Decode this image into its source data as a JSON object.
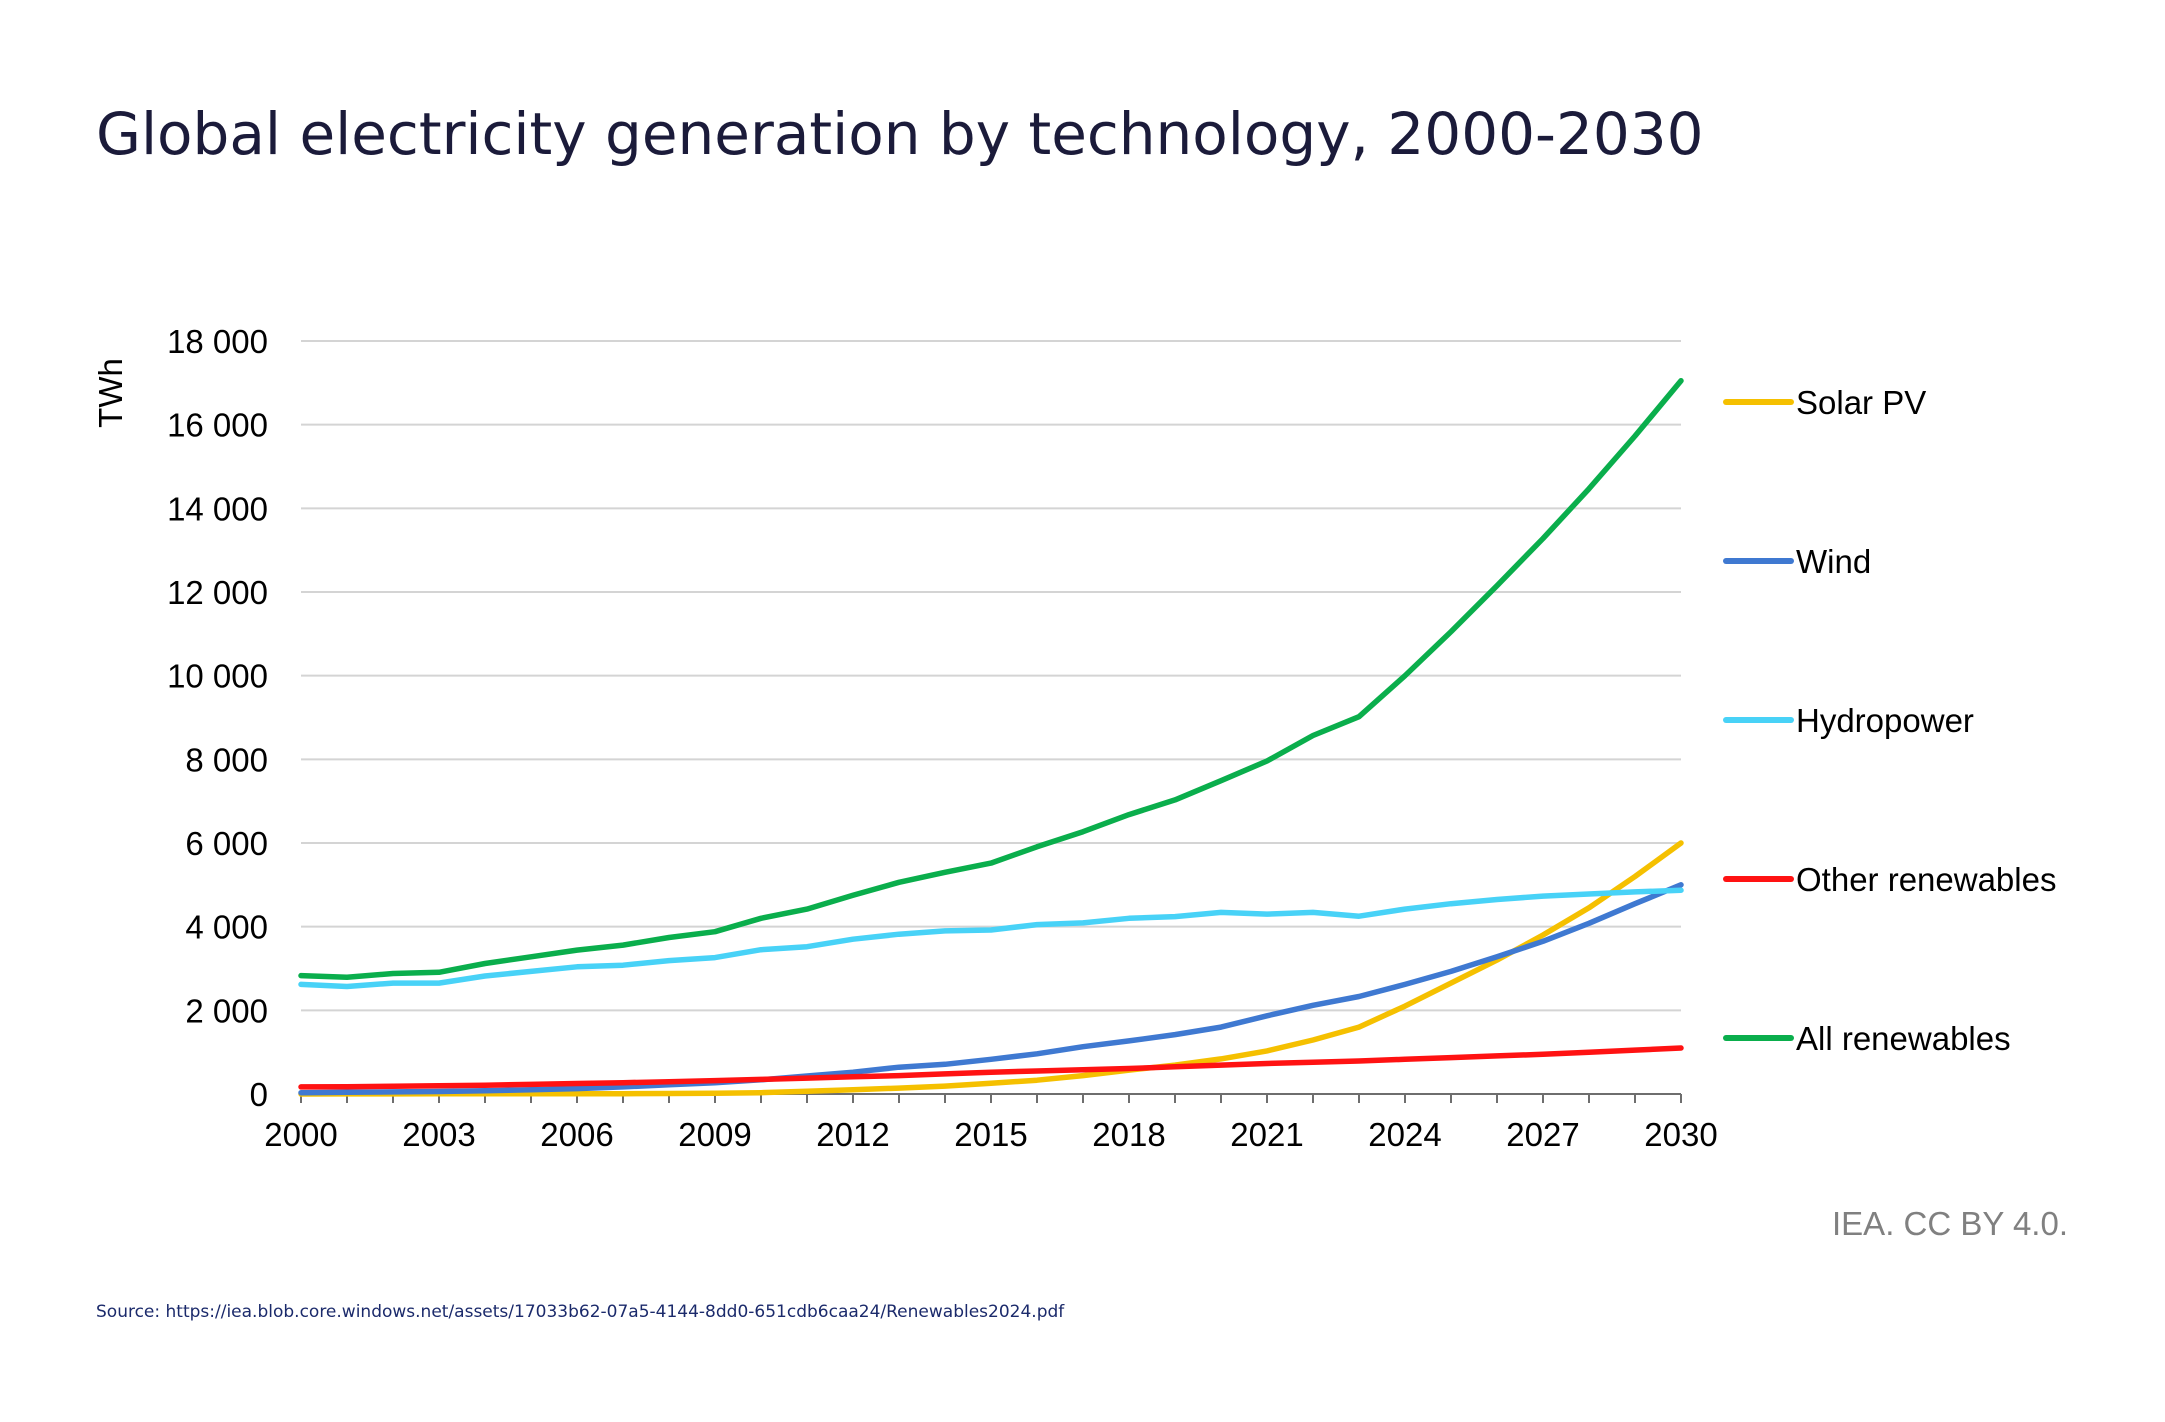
{
  "title": "Global electricity generation by technology, 2000-2030",
  "attribution": "IEA. CC BY 4.0.",
  "source": "Source: https://iea.blob.core.windows.net/assets/17033b62-07a5-4144-8dd0-651cdb6caa24/Renewables2024.pdf",
  "chart_data": {
    "type": "line",
    "title": "Global electricity generation by technology, 2000-2030",
    "xlabel": "",
    "ylabel": "TWh",
    "xlim": [
      2000,
      2030
    ],
    "ylim": [
      0,
      18000
    ],
    "grid": true,
    "legend_position": "right",
    "x": [
      2000,
      2001,
      2002,
      2003,
      2004,
      2005,
      2006,
      2007,
      2008,
      2009,
      2010,
      2011,
      2012,
      2013,
      2014,
      2015,
      2016,
      2017,
      2018,
      2019,
      2020,
      2021,
      2022,
      2023,
      2024,
      2025,
      2026,
      2027,
      2028,
      2029,
      2030
    ],
    "x_ticks": [
      2000,
      2003,
      2006,
      2009,
      2012,
      2015,
      2018,
      2021,
      2024,
      2027,
      2030
    ],
    "y_ticks": [
      0,
      2000,
      4000,
      6000,
      8000,
      10000,
      12000,
      14000,
      16000,
      18000
    ],
    "x_tick_labels": [
      "2000",
      "2003",
      "2006",
      "2009",
      "2012",
      "2015",
      "2018",
      "2021",
      "2024",
      "2027",
      "2030"
    ],
    "y_tick_labels": [
      "0",
      "2 000",
      "4 000",
      "6 000",
      "8 000",
      "10 000",
      "12 000",
      "14 000",
      "16 000",
      "18 000"
    ],
    "series": [
      {
        "name": "Solar PV",
        "color": "#f5c000",
        "values": [
          1,
          2,
          3,
          4,
          5,
          5,
          6,
          8,
          12,
          20,
          32,
          65,
          100,
          140,
          190,
          255,
          330,
          440,
          570,
          690,
          840,
          1030,
          1290,
          1600,
          2100,
          2650,
          3200,
          3800,
          4450,
          5200,
          6000
        ]
      },
      {
        "name": "Wind",
        "color": "#3f79d1",
        "values": [
          30,
          40,
          50,
          60,
          80,
          100,
          130,
          170,
          220,
          270,
          340,
          430,
          520,
          640,
          710,
          830,
          960,
          1130,
          1270,
          1420,
          1600,
          1870,
          2120,
          2330,
          2620,
          2930,
          3280,
          3650,
          4080,
          4550,
          5000
        ]
      },
      {
        "name": "Hydropower",
        "color": "#48d2f7",
        "values": [
          2620,
          2570,
          2650,
          2650,
          2820,
          2930,
          3040,
          3080,
          3190,
          3260,
          3450,
          3520,
          3700,
          3820,
          3900,
          3920,
          4050,
          4090,
          4200,
          4240,
          4340,
          4300,
          4340,
          4250,
          4420,
          4550,
          4650,
          4730,
          4780,
          4830,
          4870
        ]
      },
      {
        "name": "Other renewables",
        "color": "#ff1212",
        "values": [
          170,
          175,
          185,
          195,
          210,
          230,
          250,
          270,
          295,
          320,
          350,
          380,
          410,
          440,
          480,
          520,
          550,
          580,
          610,
          650,
          690,
          730,
          760,
          790,
          830,
          870,
          910,
          950,
          1000,
          1050,
          1100
        ]
      },
      {
        "name": "All renewables",
        "color": "#0aae4c",
        "values": [
          2830,
          2790,
          2880,
          2910,
          3120,
          3280,
          3440,
          3560,
          3740,
          3880,
          4200,
          4420,
          4750,
          5060,
          5300,
          5520,
          5910,
          6270,
          6680,
          7030,
          7490,
          7960,
          8570,
          9020,
          10000,
          11050,
          12150,
          13280,
          14470,
          15730,
          17050
        ]
      }
    ]
  }
}
